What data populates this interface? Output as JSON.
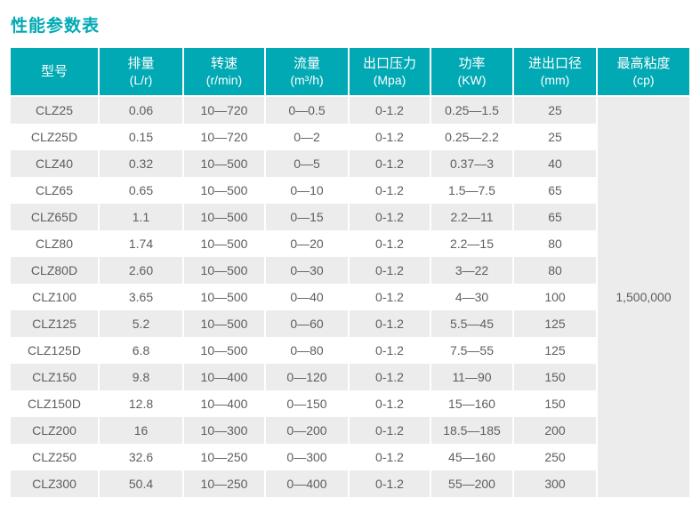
{
  "page": {
    "title": "性能参数表"
  },
  "colors": {
    "accent_teal": "#00a9b4",
    "stripe_gray": "#ececec",
    "header_text": "#ffffff",
    "body_text": "#5e5e5e"
  },
  "table": {
    "headers": [
      {
        "title": "型号",
        "unit": ""
      },
      {
        "title": "排量",
        "unit": "(L/r)"
      },
      {
        "title": "转速",
        "unit": "(r/min)"
      },
      {
        "title": "流量",
        "unit": "(m³/h)"
      },
      {
        "title": "出口压力",
        "unit": "(Mpa)"
      },
      {
        "title": "功率",
        "unit": "(KW)"
      },
      {
        "title": "进出口径",
        "unit": "(mm)"
      },
      {
        "title": "最高粘度",
        "unit": "(cp)"
      }
    ],
    "rows": [
      [
        "CLZ25",
        "0.06",
        "10—720",
        "0—0.5",
        "0-1.2",
        "0.25—1.5",
        "25"
      ],
      [
        "CLZ25D",
        "0.15",
        "10—720",
        "0—2",
        "0-1.2",
        "0.25—2.2",
        "25"
      ],
      [
        "CLZ40",
        "0.32",
        "10—500",
        "0—5",
        "0-1.2",
        "0.37—3",
        "40"
      ],
      [
        "CLZ65",
        "0.65",
        "10—500",
        "0—10",
        "0-1.2",
        "1.5—7.5",
        "65"
      ],
      [
        "CLZ65D",
        "1.1",
        "10—500",
        "0—15",
        "0-1.2",
        "2.2—11",
        "65"
      ],
      [
        "CLZ80",
        "1.74",
        "10—500",
        "0—20",
        "0-1.2",
        "2.2—15",
        "80"
      ],
      [
        "CLZ80D",
        "2.60",
        "10—500",
        "0—30",
        "0-1.2",
        "3—22",
        "80"
      ],
      [
        "CLZ100",
        "3.65",
        "10—500",
        "0—40",
        "0-1.2",
        "4—30",
        "100"
      ],
      [
        "CLZ125",
        "5.2",
        "10—500",
        "0—60",
        "0-1.2",
        "5.5—45",
        "125"
      ],
      [
        "CLZ125D",
        "6.8",
        "10—500",
        "0—80",
        "0-1.2",
        "7.5—55",
        "125"
      ],
      [
        "CLZ150",
        "9.8",
        "10—400",
        "0—120",
        "0-1.2",
        "11—90",
        "150"
      ],
      [
        "CLZ150D",
        "12.8",
        "10—400",
        "0—150",
        "0-1.2",
        "15—160",
        "150"
      ],
      [
        "CLZ200",
        "16",
        "10—300",
        "0—200",
        "0-1.2",
        "18.5—185",
        "200"
      ],
      [
        "CLZ250",
        "32.6",
        "10—250",
        "0—300",
        "0-1.2",
        "45—160",
        "250"
      ],
      [
        "CLZ300",
        "50.4",
        "10—250",
        "0—400",
        "0-1.2",
        "55—200",
        "300"
      ]
    ],
    "max_viscosity": "1,500,000"
  },
  "chart_data": {
    "type": "table",
    "title": "性能参数表",
    "columns": [
      "型号",
      "排量 (L/r)",
      "转速 (r/min)",
      "流量 (m³/h)",
      "出口压力 (Mpa)",
      "功率 (KW)",
      "进出口径 (mm)",
      "最高粘度 (cp)"
    ],
    "rows": [
      [
        "CLZ25",
        "0.06",
        "10—720",
        "0—0.5",
        "0-1.2",
        "0.25—1.5",
        "25",
        "1,500,000"
      ],
      [
        "CLZ25D",
        "0.15",
        "10—720",
        "0—2",
        "0-1.2",
        "0.25—2.2",
        "25",
        "1,500,000"
      ],
      [
        "CLZ40",
        "0.32",
        "10—500",
        "0—5",
        "0-1.2",
        "0.37—3",
        "40",
        "1,500,000"
      ],
      [
        "CLZ65",
        "0.65",
        "10—500",
        "0—10",
        "0-1.2",
        "1.5—7.5",
        "65",
        "1,500,000"
      ],
      [
        "CLZ65D",
        "1.1",
        "10—500",
        "0—15",
        "0-1.2",
        "2.2—11",
        "65",
        "1,500,000"
      ],
      [
        "CLZ80",
        "1.74",
        "10—500",
        "0—20",
        "0-1.2",
        "2.2—15",
        "80",
        "1,500,000"
      ],
      [
        "CLZ80D",
        "2.60",
        "10—500",
        "0—30",
        "0-1.2",
        "3—22",
        "80",
        "1,500,000"
      ],
      [
        "CLZ100",
        "3.65",
        "10—500",
        "0—40",
        "0-1.2",
        "4—30",
        "100",
        "1,500,000"
      ],
      [
        "CLZ125",
        "5.2",
        "10—500",
        "0—60",
        "0-1.2",
        "5.5—45",
        "125",
        "1,500,000"
      ],
      [
        "CLZ125D",
        "6.8",
        "10—500",
        "0—80",
        "0-1.2",
        "7.5—55",
        "125",
        "1,500,000"
      ],
      [
        "CLZ150",
        "9.8",
        "10—400",
        "0—120",
        "0-1.2",
        "11—90",
        "150",
        "1,500,000"
      ],
      [
        "CLZ150D",
        "12.8",
        "10—400",
        "0—150",
        "0-1.2",
        "15—160",
        "150",
        "1,500,000"
      ],
      [
        "CLZ200",
        "16",
        "10—300",
        "0—200",
        "0-1.2",
        "18.5—185",
        "200",
        "1,500,000"
      ],
      [
        "CLZ250",
        "32.6",
        "10—250",
        "0—300",
        "0-1.2",
        "45—160",
        "250",
        "1,500,000"
      ],
      [
        "CLZ300",
        "50.4",
        "10—250",
        "0—400",
        "0-1.2",
        "55—200",
        "300",
        "1,500,000"
      ]
    ],
    "notes": "最高粘度 column is a single merged cell (value 1,500,000) spanning all 15 rows"
  }
}
